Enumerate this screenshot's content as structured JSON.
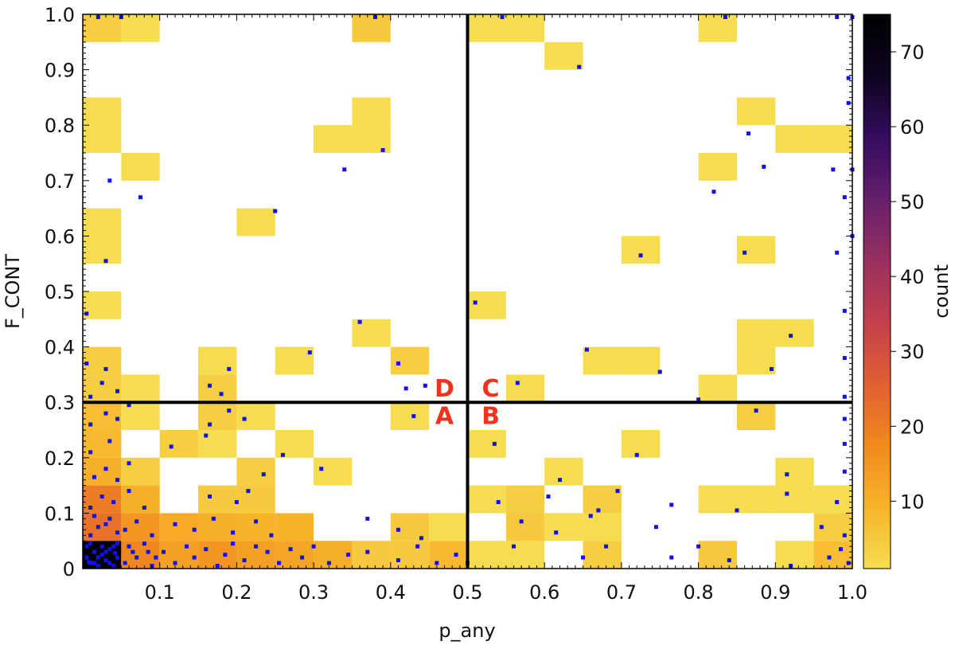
{
  "chart_data": {
    "type": "heatmap",
    "title": "",
    "xlabel": "p_any",
    "ylabel": "F_CONT",
    "xlim": [
      0,
      1
    ],
    "ylim": [
      0,
      1
    ],
    "bin_width": 0.05,
    "grid": false,
    "x_ticks": [
      0.1,
      0.2,
      0.3,
      0.4,
      0.5,
      0.6,
      0.7,
      0.8,
      0.9,
      1.0
    ],
    "x_tick_labels": [
      "0.1",
      "0.2",
      "0.3",
      "0.4",
      "0.5",
      "0.6",
      "0.7",
      "0.8",
      "0.9",
      "1.0"
    ],
    "y_ticks": [
      0,
      0.1,
      0.2,
      0.3,
      0.4,
      0.5,
      0.6,
      0.7,
      0.8,
      0.9,
      1.0
    ],
    "y_tick_labels": [
      "0",
      "0.1",
      "0.2",
      "0.3",
      "0.4",
      "0.5",
      "0.6",
      "0.7",
      "0.8",
      "0.9",
      "1.0"
    ],
    "colorbar": {
      "label": "count",
      "range": [
        1,
        75
      ],
      "ticks": [
        10,
        20,
        30,
        40,
        50,
        60,
        70
      ],
      "tick_labels": [
        "10",
        "20",
        "30",
        "40",
        "50",
        "60",
        "70"
      ],
      "colormap": [
        "#f6dd50",
        "#f7b32a",
        "#f18a1d",
        "#e05f33",
        "#c3404c",
        "#973060",
        "#651f6a",
        "#350c60",
        "#0d0420",
        "#000000"
      ]
    },
    "threshold_lines": {
      "x": 0.5,
      "y": 0.3
    },
    "quadrant_labels": [
      {
        "text": "D",
        "x": 0.47,
        "y": 0.325
      },
      {
        "text": "C",
        "x": 0.53,
        "y": 0.325
      },
      {
        "text": "A",
        "x": 0.47,
        "y": 0.275
      },
      {
        "text": "B",
        "x": 0.53,
        "y": 0.275
      }
    ],
    "bins": [
      [
        0.0,
        0.0,
        75
      ],
      [
        0.05,
        0.0,
        18
      ],
      [
        0.1,
        0.0,
        13
      ],
      [
        0.15,
        0.0,
        15
      ],
      [
        0.2,
        0.0,
        13
      ],
      [
        0.25,
        0.0,
        12
      ],
      [
        0.3,
        0.0,
        10
      ],
      [
        0.35,
        0.0,
        5
      ],
      [
        0.4,
        0.0,
        5
      ],
      [
        0.45,
        0.0,
        8
      ],
      [
        0.5,
        0.0,
        1
      ],
      [
        0.55,
        0.0,
        1
      ],
      [
        0.65,
        0.0,
        4
      ],
      [
        0.8,
        0.0,
        5
      ],
      [
        0.9,
        0.0,
        1
      ],
      [
        0.95,
        0.0,
        7
      ],
      [
        1.0,
        0.0,
        7
      ],
      [
        0.0,
        0.05,
        22
      ],
      [
        0.05,
        0.05,
        15
      ],
      [
        0.1,
        0.05,
        11
      ],
      [
        0.15,
        0.05,
        10
      ],
      [
        0.2,
        0.05,
        9
      ],
      [
        0.25,
        0.05,
        9
      ],
      [
        0.4,
        0.05,
        5
      ],
      [
        0.45,
        0.05,
        1
      ],
      [
        0.55,
        0.05,
        5
      ],
      [
        0.6,
        0.05,
        1
      ],
      [
        0.65,
        0.05,
        1
      ],
      [
        0.95,
        0.05,
        4
      ],
      [
        1.0,
        0.05,
        4
      ],
      [
        0.0,
        0.1,
        20
      ],
      [
        0.05,
        0.1,
        10
      ],
      [
        0.15,
        0.1,
        5
      ],
      [
        0.2,
        0.1,
        5
      ],
      [
        0.5,
        0.1,
        1
      ],
      [
        0.55,
        0.1,
        4
      ],
      [
        0.65,
        0.1,
        4
      ],
      [
        0.8,
        0.1,
        1
      ],
      [
        0.85,
        0.1,
        1
      ],
      [
        0.9,
        0.1,
        1
      ],
      [
        0.95,
        0.1,
        1
      ],
      [
        1.0,
        0.1,
        4
      ],
      [
        0.0,
        0.15,
        10
      ],
      [
        0.05,
        0.15,
        4
      ],
      [
        0.2,
        0.15,
        4
      ],
      [
        0.3,
        0.15,
        1
      ],
      [
        0.6,
        0.15,
        1
      ],
      [
        0.9,
        0.15,
        1
      ],
      [
        1.0,
        0.15,
        1
      ],
      [
        0.0,
        0.2,
        8
      ],
      [
        0.1,
        0.2,
        4
      ],
      [
        0.15,
        0.2,
        1
      ],
      [
        0.25,
        0.2,
        1
      ],
      [
        0.5,
        0.2,
        1
      ],
      [
        0.7,
        0.2,
        1
      ],
      [
        1.0,
        0.2,
        1
      ],
      [
        0.0,
        0.25,
        7
      ],
      [
        0.05,
        0.25,
        1
      ],
      [
        0.15,
        0.25,
        4
      ],
      [
        0.2,
        0.25,
        1
      ],
      [
        0.4,
        0.25,
        1
      ],
      [
        0.85,
        0.25,
        4
      ],
      [
        1.0,
        0.25,
        4
      ],
      [
        0.0,
        0.3,
        4
      ],
      [
        0.05,
        0.3,
        1
      ],
      [
        0.15,
        0.3,
        4
      ],
      [
        0.55,
        0.3,
        1
      ],
      [
        0.8,
        0.3,
        1
      ],
      [
        1.0,
        0.3,
        4
      ],
      [
        0.0,
        0.35,
        4
      ],
      [
        0.15,
        0.35,
        1
      ],
      [
        0.25,
        0.35,
        1
      ],
      [
        0.4,
        0.35,
        4
      ],
      [
        0.65,
        0.35,
        1
      ],
      [
        0.7,
        0.35,
        1
      ],
      [
        0.85,
        0.35,
        1
      ],
      [
        1.0,
        0.35,
        1
      ],
      [
        0.35,
        0.4,
        1
      ],
      [
        0.85,
        0.4,
        1
      ],
      [
        0.9,
        0.4,
        1
      ],
      [
        0.0,
        0.45,
        1
      ],
      [
        0.5,
        0.45,
        1
      ],
      [
        1.0,
        0.45,
        4
      ],
      [
        0.0,
        0.55,
        1
      ],
      [
        0.7,
        0.55,
        1
      ],
      [
        0.85,
        0.55,
        1
      ],
      [
        1.0,
        0.55,
        4
      ],
      [
        0.0,
        0.6,
        1
      ],
      [
        0.2,
        0.6,
        1
      ],
      [
        0.05,
        0.7,
        1
      ],
      [
        0.8,
        0.7,
        1
      ],
      [
        1.0,
        0.7,
        1
      ],
      [
        0.0,
        0.75,
        1
      ],
      [
        0.3,
        0.75,
        1
      ],
      [
        0.35,
        0.75,
        1
      ],
      [
        0.9,
        0.75,
        1
      ],
      [
        0.95,
        0.75,
        1
      ],
      [
        1.0,
        0.75,
        1
      ],
      [
        0.0,
        0.8,
        1
      ],
      [
        0.35,
        0.8,
        1
      ],
      [
        0.85,
        0.8,
        1
      ],
      [
        1.0,
        0.85,
        1
      ],
      [
        0.6,
        0.9,
        1
      ],
      [
        0.0,
        0.95,
        4
      ],
      [
        0.05,
        0.95,
        1
      ],
      [
        0.35,
        0.95,
        5
      ],
      [
        0.5,
        0.95,
        1
      ],
      [
        0.55,
        0.95,
        1
      ],
      [
        0.8,
        0.95,
        1
      ],
      [
        1.0,
        0.95,
        11
      ]
    ],
    "points": [
      [
        0.01,
        0.01
      ],
      [
        0.02,
        0.02
      ],
      [
        0.03,
        0.015
      ],
      [
        0.015,
        0.03
      ],
      [
        0.04,
        0.005
      ],
      [
        0.025,
        0.04
      ],
      [
        0.005,
        0.02
      ],
      [
        0.035,
        0.035
      ],
      [
        0.045,
        0.02
      ],
      [
        0.01,
        0.045
      ],
      [
        0.02,
        0.005
      ],
      [
        0.03,
        0.03
      ],
      [
        0.005,
        0.04
      ],
      [
        0.04,
        0.04
      ],
      [
        0.015,
        0.01
      ],
      [
        0.045,
        0.045
      ],
      [
        0.025,
        0.025
      ],
      [
        0.035,
        0.01
      ],
      [
        0.008,
        0.012
      ],
      [
        0.042,
        0.028
      ],
      [
        0.055,
        0.01
      ],
      [
        0.07,
        0.02
      ],
      [
        0.085,
        0.03
      ],
      [
        0.06,
        0.04
      ],
      [
        0.09,
        0.005
      ],
      [
        0.065,
        0.03
      ],
      [
        0.08,
        0.045
      ],
      [
        0.095,
        0.02
      ],
      [
        0.105,
        0.03
      ],
      [
        0.12,
        0.01
      ],
      [
        0.135,
        0.04
      ],
      [
        0.145,
        0.02
      ],
      [
        0.16,
        0.035
      ],
      [
        0.175,
        0.005
      ],
      [
        0.185,
        0.025
      ],
      [
        0.195,
        0.045
      ],
      [
        0.21,
        0.015
      ],
      [
        0.225,
        0.04
      ],
      [
        0.24,
        0.03
      ],
      [
        0.255,
        0.01
      ],
      [
        0.27,
        0.035
      ],
      [
        0.285,
        0.02
      ],
      [
        0.3,
        0.04
      ],
      [
        0.32,
        0.01
      ],
      [
        0.345,
        0.025
      ],
      [
        0.37,
        0.03
      ],
      [
        0.41,
        0.015
      ],
      [
        0.435,
        0.04
      ],
      [
        0.46,
        0.01
      ],
      [
        0.485,
        0.025
      ],
      [
        0.01,
        0.06
      ],
      [
        0.02,
        0.075
      ],
      [
        0.035,
        0.09
      ],
      [
        0.045,
        0.065
      ],
      [
        0.015,
        0.095
      ],
      [
        0.03,
        0.08
      ],
      [
        0.055,
        0.07
      ],
      [
        0.07,
        0.085
      ],
      [
        0.09,
        0.06
      ],
      [
        0.12,
        0.08
      ],
      [
        0.145,
        0.07
      ],
      [
        0.17,
        0.09
      ],
      [
        0.195,
        0.065
      ],
      [
        0.225,
        0.085
      ],
      [
        0.245,
        0.06
      ],
      [
        0.37,
        0.09
      ],
      [
        0.41,
        0.07
      ],
      [
        0.44,
        0.055
      ],
      [
        0.01,
        0.11
      ],
      [
        0.025,
        0.13
      ],
      [
        0.04,
        0.12
      ],
      [
        0.06,
        0.14
      ],
      [
        0.08,
        0.11
      ],
      [
        0.165,
        0.13
      ],
      [
        0.2,
        0.12
      ],
      [
        0.215,
        0.14
      ],
      [
        0.015,
        0.165
      ],
      [
        0.03,
        0.18
      ],
      [
        0.045,
        0.16
      ],
      [
        0.06,
        0.19
      ],
      [
        0.235,
        0.17
      ],
      [
        0.31,
        0.18
      ],
      [
        0.01,
        0.21
      ],
      [
        0.035,
        0.23
      ],
      [
        0.115,
        0.22
      ],
      [
        0.16,
        0.24
      ],
      [
        0.26,
        0.205
      ],
      [
        0.01,
        0.26
      ],
      [
        0.03,
        0.28
      ],
      [
        0.045,
        0.27
      ],
      [
        0.06,
        0.295
      ],
      [
        0.165,
        0.26
      ],
      [
        0.19,
        0.285
      ],
      [
        0.21,
        0.27
      ],
      [
        0.43,
        0.275
      ],
      [
        0.01,
        0.31
      ],
      [
        0.025,
        0.335
      ],
      [
        0.045,
        0.32
      ],
      [
        0.165,
        0.33
      ],
      [
        0.18,
        0.315
      ],
      [
        0.42,
        0.325
      ],
      [
        0.445,
        0.33
      ],
      [
        0.005,
        0.37
      ],
      [
        0.03,
        0.36
      ],
      [
        0.19,
        0.36
      ],
      [
        0.295,
        0.39
      ],
      [
        0.41,
        0.37
      ],
      [
        0.36,
        0.445
      ],
      [
        0.005,
        0.46
      ],
      [
        0.51,
        0.48
      ],
      [
        0.03,
        0.555
      ],
      [
        0.725,
        0.565
      ],
      [
        0.86,
        0.57
      ],
      [
        0.98,
        0.57
      ],
      [
        1.0,
        0.6
      ],
      [
        0.25,
        0.645
      ],
      [
        0.075,
        0.67
      ],
      [
        0.82,
        0.68
      ],
      [
        0.99,
        0.67
      ],
      [
        0.035,
        0.7
      ],
      [
        0.34,
        0.72
      ],
      [
        0.885,
        0.725
      ],
      [
        0.975,
        0.72
      ],
      [
        1.0,
        0.72
      ],
      [
        0.39,
        0.755
      ],
      [
        0.865,
        0.785
      ],
      [
        0.645,
        0.905
      ],
      [
        0.995,
        0.885
      ],
      [
        0.995,
        0.84
      ],
      [
        0.02,
        0.995
      ],
      [
        0.05,
        0.995
      ],
      [
        0.38,
        0.995
      ],
      [
        0.545,
        0.995
      ],
      [
        0.835,
        0.995
      ],
      [
        0.98,
        0.995
      ],
      [
        1.0,
        0.995
      ],
      [
        0.5,
        0.01
      ],
      [
        0.56,
        0.04
      ],
      [
        0.65,
        0.02
      ],
      [
        0.68,
        0.04
      ],
      [
        0.765,
        0.02
      ],
      [
        0.8,
        0.04
      ],
      [
        0.84,
        0.015
      ],
      [
        0.92,
        0.005
      ],
      [
        0.97,
        0.02
      ],
      [
        0.985,
        0.035
      ],
      [
        0.995,
        0.01
      ],
      [
        0.57,
        0.085
      ],
      [
        0.615,
        0.065
      ],
      [
        0.66,
        0.095
      ],
      [
        0.745,
        0.075
      ],
      [
        0.96,
        0.075
      ],
      [
        0.99,
        0.06
      ],
      [
        0.54,
        0.12
      ],
      [
        0.605,
        0.13
      ],
      [
        0.67,
        0.105
      ],
      [
        0.695,
        0.14
      ],
      [
        0.765,
        0.115
      ],
      [
        0.85,
        0.105
      ],
      [
        0.915,
        0.135
      ],
      [
        0.98,
        0.12
      ],
      [
        0.62,
        0.16
      ],
      [
        0.915,
        0.17
      ],
      [
        0.99,
        0.175
      ],
      [
        0.535,
        0.225
      ],
      [
        0.72,
        0.205
      ],
      [
        0.99,
        0.225
      ],
      [
        0.875,
        0.285
      ],
      [
        0.99,
        0.27
      ],
      [
        0.565,
        0.335
      ],
      [
        0.75,
        0.355
      ],
      [
        0.8,
        0.305
      ],
      [
        0.99,
        0.31
      ],
      [
        0.655,
        0.395
      ],
      [
        0.895,
        0.36
      ],
      [
        0.92,
        0.42
      ],
      [
        0.99,
        0.38
      ],
      [
        0.99,
        0.465
      ]
    ]
  }
}
